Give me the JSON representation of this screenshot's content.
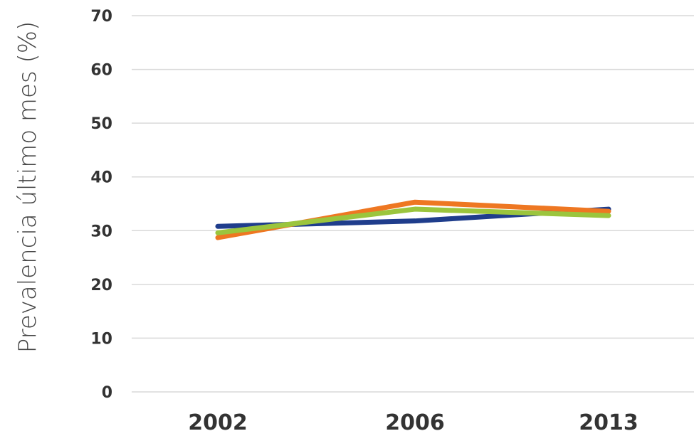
{
  "chart_data": {
    "type": "line",
    "title": "",
    "xlabel": "",
    "ylabel": "Prevalencia último mes (%)",
    "categories": [
      "2002",
      "2006",
      "2013"
    ],
    "ylim": [
      0,
      70
    ],
    "yticks": [
      0,
      10,
      20,
      30,
      40,
      50,
      60,
      70
    ],
    "grid": true,
    "legend": "none",
    "series": [
      {
        "color": "#1f3d8c",
        "values": [
          30.8,
          31.8,
          34.0
        ]
      },
      {
        "color": "#ee7722",
        "values": [
          28.7,
          35.3,
          33.6
        ]
      },
      {
        "color": "#9bc53d",
        "values": [
          29.6,
          34.0,
          32.8
        ]
      }
    ]
  }
}
